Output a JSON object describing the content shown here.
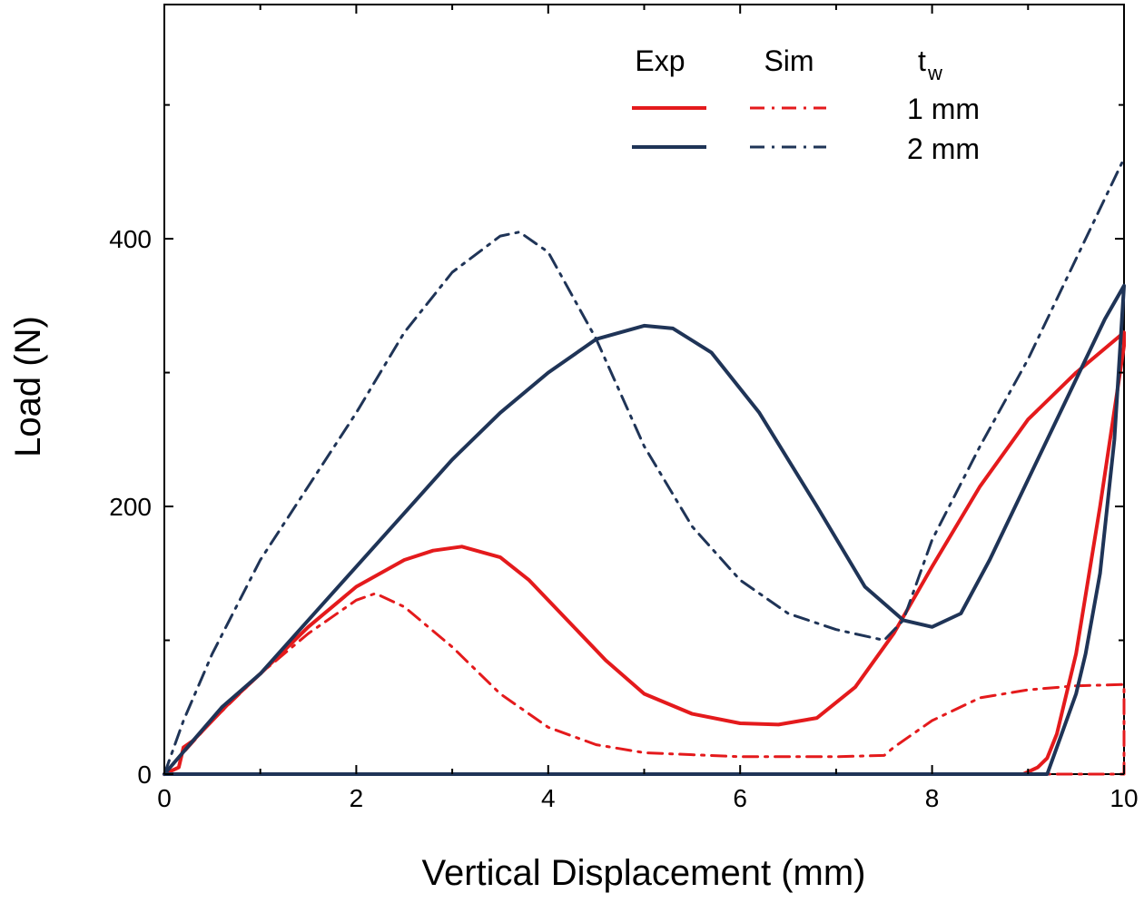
{
  "chart_data": {
    "type": "line",
    "title": "",
    "xlabel": "Vertical Displacement (mm)",
    "ylabel": "Load (N)",
    "xlim": [
      0,
      10
    ],
    "ylim": [
      0,
      575
    ],
    "xticks": [
      0,
      2,
      4,
      6,
      8,
      10
    ],
    "yticks": [
      0,
      200,
      400
    ],
    "grid": false,
    "legend": {
      "placement": "top-right",
      "header_exp": "Exp",
      "header_sim": "Sim",
      "header_t": "t",
      "header_t_sub": "w",
      "row_labels": [
        "1 mm",
        "2 mm"
      ]
    },
    "colors": {
      "red": "#e41a1c",
      "navy": "#1f3457",
      "axis": "#000000"
    },
    "series": [
      {
        "name": "Exp 1 mm",
        "style": "solid",
        "color": "#e41a1c",
        "x": [
          0,
          0.15,
          0.2,
          0.3,
          0.5,
          0.7,
          1.0,
          1.5,
          2.0,
          2.5,
          2.8,
          3.1,
          3.5,
          3.8,
          4.2,
          4.6,
          5.0,
          5.5,
          6.0,
          6.4,
          6.8,
          7.2,
          7.6,
          8.0,
          8.5,
          9.0,
          9.5,
          10.0,
          10.0,
          9.75,
          9.5,
          9.3,
          9.2,
          9.1,
          8.95,
          8.5,
          6.0,
          3.0,
          1.0,
          0.0
        ],
        "y": [
          0,
          5,
          20,
          25,
          40,
          55,
          75,
          110,
          140,
          160,
          167,
          170,
          162,
          145,
          115,
          85,
          60,
          45,
          38,
          37,
          42,
          65,
          105,
          155,
          215,
          265,
          300,
          330,
          320,
          200,
          90,
          30,
          12,
          5,
          0,
          0,
          0,
          0,
          0,
          0
        ]
      },
      {
        "name": "Sim 1 mm",
        "style": "dashdot",
        "color": "#e41a1c",
        "x": [
          0,
          0.5,
          1.0,
          1.5,
          2.0,
          2.2,
          2.5,
          3.0,
          3.5,
          4.0,
          4.5,
          5.0,
          6.0,
          7.0,
          7.5,
          7.6,
          8.0,
          8.5,
          9.0,
          9.5,
          10.0,
          10.0,
          9.0,
          8.0
        ],
        "y": [
          0,
          40,
          75,
          105,
          130,
          135,
          125,
          95,
          60,
          35,
          22,
          16,
          13,
          13,
          14,
          20,
          40,
          57,
          63,
          66,
          67,
          0,
          0,
          0
        ]
      },
      {
        "name": "Exp 2 mm",
        "style": "solid",
        "color": "#1f3457",
        "x": [
          0,
          0.3,
          0.6,
          1.0,
          1.5,
          2.0,
          2.5,
          3.0,
          3.5,
          4.0,
          4.5,
          5.0,
          5.3,
          5.7,
          6.2,
          6.8,
          7.3,
          7.7,
          8.0,
          8.3,
          8.6,
          9.0,
          9.4,
          9.8,
          10.0,
          9.9,
          9.75,
          9.6,
          9.5,
          9.35,
          9.2,
          9.0,
          6.0,
          3.0,
          0.0
        ],
        "y": [
          0,
          25,
          50,
          75,
          115,
          155,
          195,
          235,
          270,
          300,
          325,
          335,
          333,
          315,
          270,
          200,
          140,
          115,
          110,
          120,
          160,
          220,
          280,
          340,
          365,
          250,
          150,
          90,
          60,
          30,
          0,
          0,
          0,
          0,
          0
        ]
      },
      {
        "name": "Sim 2 mm",
        "style": "dashdot",
        "color": "#1f3457",
        "x": [
          0,
          0.2,
          0.5,
          1.0,
          1.5,
          2.0,
          2.5,
          3.0,
          3.5,
          3.7,
          4.0,
          4.5,
          5.0,
          5.5,
          6.0,
          6.5,
          7.0,
          7.5,
          7.7,
          8.0,
          8.5,
          9.0,
          9.5,
          10.0
        ],
        "y": [
          0,
          40,
          90,
          160,
          215,
          270,
          330,
          375,
          402,
          405,
          390,
          325,
          245,
          185,
          145,
          120,
          108,
          100,
          115,
          175,
          245,
          310,
          385,
          460
        ]
      }
    ]
  }
}
